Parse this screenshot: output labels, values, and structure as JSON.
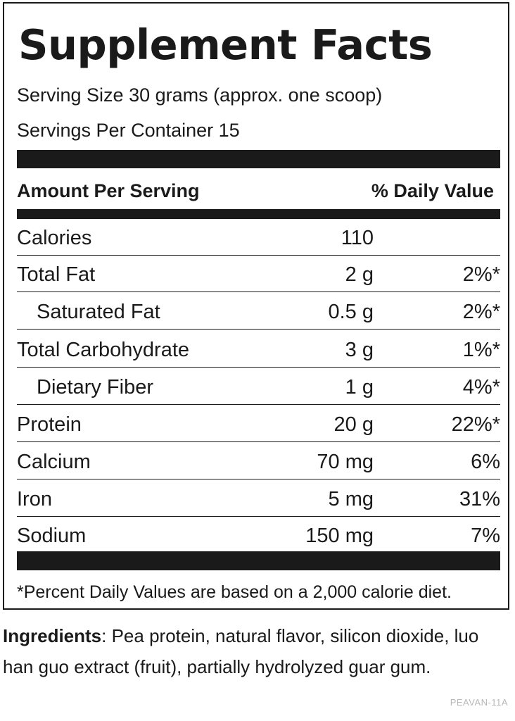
{
  "title": "Supplement Facts",
  "serving_size": "Serving Size 30 grams (approx. one scoop)",
  "servings_per_container": "Servings Per Container 15",
  "header": {
    "amount_label": "Amount Per Serving",
    "dv_label": "% Daily Value"
  },
  "rows": [
    {
      "name": "Calories",
      "amount": "110",
      "dv": "",
      "indent": false
    },
    {
      "name": "Total Fat",
      "amount": "2 g",
      "dv": "2%*",
      "indent": false
    },
    {
      "name": "Saturated Fat",
      "amount": "0.5 g",
      "dv": "2%*",
      "indent": true
    },
    {
      "name": "Total Carbohydrate",
      "amount": "3 g",
      "dv": "1%*",
      "indent": false
    },
    {
      "name": "Dietary Fiber",
      "amount": "1 g",
      "dv": "4%*",
      "indent": true
    },
    {
      "name": "Protein",
      "amount": "20 g",
      "dv": "22%*",
      "indent": false
    },
    {
      "name": "Calcium",
      "amount": "70 mg",
      "dv": "6%",
      "indent": false
    },
    {
      "name": "Iron",
      "amount": "5 mg",
      "dv": "31%",
      "indent": false
    },
    {
      "name": "Sodium",
      "amount": "150 mg",
      "dv": "7%",
      "indent": false
    }
  ],
  "footnote": "*Percent Daily Values are based on a 2,000 calorie diet.",
  "ingredients": {
    "label": "Ingredients",
    "text": ": Pea protein, natural flavor, silicon dioxide, luo han guo extract (fruit), partially hydrolyzed guar gum."
  },
  "product_code": "PEAVAN-11A"
}
